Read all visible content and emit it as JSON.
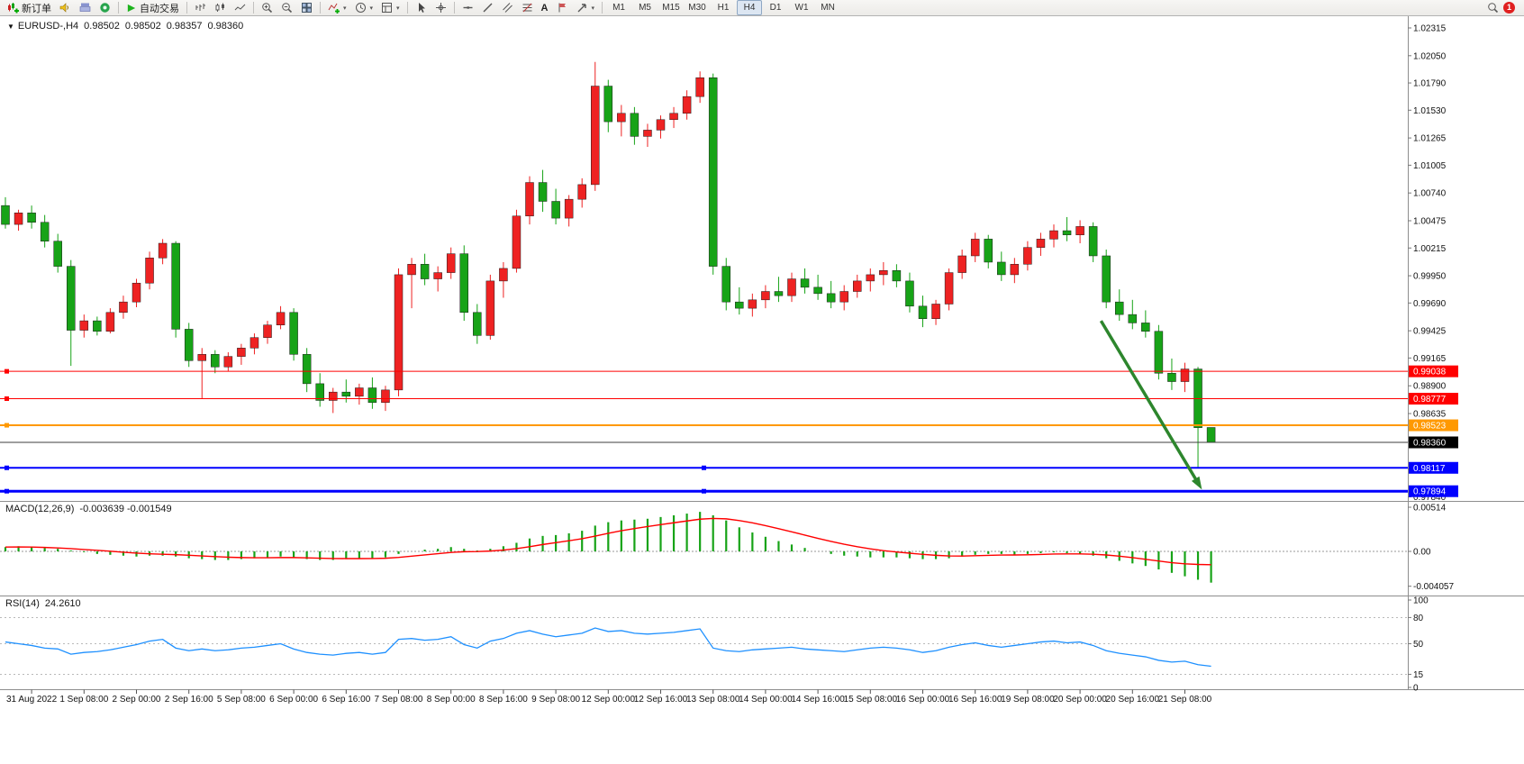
{
  "toolbar": {
    "new_order_label": "新订单",
    "autotrading_label": "自动交易",
    "text_tool_label": "A",
    "timeframes": [
      "M1",
      "M5",
      "M15",
      "M30",
      "H1",
      "H4",
      "D1",
      "W1",
      "MN"
    ],
    "active_timeframe": "H4",
    "notification_count": "1"
  },
  "chart": {
    "header": {
      "collapse_icon": "▼",
      "symbol": "EURUSD-,H4",
      "open": "0.98502",
      "high": "0.98502",
      "low": "0.98357",
      "close": "0.98360"
    },
    "macd_header": {
      "label": "MACD(12,26,9)",
      "values": "-0.003639 -0.001549"
    },
    "rsi_header": {
      "label": "RSI(14)",
      "value": "24.2610"
    }
  },
  "chart_data": {
    "type": "candlestick",
    "symbol": "EURUSD-",
    "timeframe": "H4",
    "ohlc_current": {
      "open": 0.98502,
      "high": 0.98502,
      "low": 0.98357,
      "close": 0.9836
    },
    "price_axis": {
      "top_price": 1.02315,
      "step": 0.00265
    },
    "price_axis_labels": [
      "1.02315",
      "1.02050",
      "1.01790",
      "1.01530",
      "1.01265",
      "1.01005",
      "1.00740",
      "1.00475",
      "1.00215",
      "0.99950",
      "0.99690",
      "0.99425",
      "0.99165",
      "0.98900",
      "0.98635",
      "0.98370",
      "0.98105",
      "0.97840"
    ],
    "candles": [
      [
        1.0062,
        1.007,
        1.004,
        1.0044
      ],
      [
        1.0044,
        1.0058,
        1.0038,
        1.0055
      ],
      [
        1.0055,
        1.0062,
        1.004,
        1.0046
      ],
      [
        1.0046,
        1.0053,
        1.0022,
        1.0028
      ],
      [
        1.0028,
        1.0035,
        0.9998,
        1.0004
      ],
      [
        1.0004,
        1.001,
        0.9909,
        0.9943
      ],
      [
        0.9943,
        0.9958,
        0.9936,
        0.9952
      ],
      [
        0.9952,
        0.9956,
        0.9938,
        0.9942
      ],
      [
        0.9942,
        0.9964,
        0.994,
        0.996
      ],
      [
        0.996,
        0.9976,
        0.9954,
        0.997
      ],
      [
        0.997,
        0.9992,
        0.9965,
        0.9988
      ],
      [
        0.9988,
        1.0018,
        0.9982,
        1.0012
      ],
      [
        1.0012,
        1.003,
        1.0006,
        1.0026
      ],
      [
        1.0026,
        1.0028,
        0.9936,
        0.9944
      ],
      [
        0.9944,
        0.995,
        0.9908,
        0.9914
      ],
      [
        0.9914,
        0.9926,
        0.9878,
        0.992
      ],
      [
        0.992,
        0.9924,
        0.9902,
        0.9908
      ],
      [
        0.9908,
        0.9922,
        0.9904,
        0.9918
      ],
      [
        0.9918,
        0.993,
        0.991,
        0.9926
      ],
      [
        0.9926,
        0.994,
        0.992,
        0.9936
      ],
      [
        0.9936,
        0.9952,
        0.993,
        0.9948
      ],
      [
        0.9948,
        0.9966,
        0.9944,
        0.996
      ],
      [
        0.996,
        0.9964,
        0.9914,
        0.992
      ],
      [
        0.992,
        0.9926,
        0.9884,
        0.9892
      ],
      [
        0.9892,
        0.9902,
        0.987,
        0.9876
      ],
      [
        0.9876,
        0.9888,
        0.9864,
        0.9884
      ],
      [
        0.9884,
        0.9896,
        0.9874,
        0.988
      ],
      [
        0.988,
        0.9892,
        0.9872,
        0.9888
      ],
      [
        0.9888,
        0.9898,
        0.9868,
        0.9874
      ],
      [
        0.9874,
        0.989,
        0.9866,
        0.9886
      ],
      [
        0.9886,
        1.0002,
        0.988,
        0.9996
      ],
      [
        0.9996,
        1.0012,
        0.9964,
        1.0006
      ],
      [
        1.0006,
        1.0016,
        0.9986,
        0.9992
      ],
      [
        0.9992,
        1.0004,
        0.998,
        0.9998
      ],
      [
        0.9998,
        1.0022,
        0.9992,
        1.0016
      ],
      [
        1.0016,
        1.0024,
        0.9952,
        0.996
      ],
      [
        0.996,
        0.9968,
        0.993,
        0.9938
      ],
      [
        0.9938,
        0.9996,
        0.9934,
        0.999
      ],
      [
        0.999,
        1.0008,
        0.9974,
        1.0002
      ],
      [
        1.0002,
        1.0058,
        0.9998,
        1.0052
      ],
      [
        1.0052,
        1.009,
        1.0044,
        1.0084
      ],
      [
        1.0084,
        1.0096,
        1.0056,
        1.0066
      ],
      [
        1.0066,
        1.0078,
        1.0044,
        1.005
      ],
      [
        1.005,
        1.0072,
        1.0042,
        1.0068
      ],
      [
        1.0068,
        1.0088,
        1.006,
        1.0082
      ],
      [
        1.0082,
        1.0199,
        1.0076,
        1.0176
      ],
      [
        1.0176,
        1.0182,
        1.0132,
        1.0142
      ],
      [
        1.0142,
        1.0158,
        1.0128,
        1.015
      ],
      [
        1.015,
        1.0156,
        1.012,
        1.0128
      ],
      [
        1.0128,
        1.014,
        1.0118,
        1.0134
      ],
      [
        1.0134,
        1.0148,
        1.0126,
        1.0144
      ],
      [
        1.0144,
        1.0156,
        1.0136,
        1.015
      ],
      [
        1.015,
        1.0172,
        1.0144,
        1.0166
      ],
      [
        1.0166,
        1.019,
        1.016,
        1.0184
      ],
      [
        1.0184,
        1.0188,
        0.9996,
        1.0004
      ],
      [
        1.0004,
        1.0012,
        0.9962,
        0.997
      ],
      [
        0.997,
        0.9984,
        0.9958,
        0.9964
      ],
      [
        0.9964,
        0.9978,
        0.9956,
        0.9972
      ],
      [
        0.9972,
        0.9986,
        0.9964,
        0.998
      ],
      [
        0.998,
        0.9994,
        0.997,
        0.9976
      ],
      [
        0.9976,
        0.9998,
        0.997,
        0.9992
      ],
      [
        0.9992,
        1.0002,
        0.9978,
        0.9984
      ],
      [
        0.9984,
        0.9996,
        0.9972,
        0.9978
      ],
      [
        0.9978,
        0.999,
        0.9964,
        0.997
      ],
      [
        0.997,
        0.9986,
        0.9962,
        0.998
      ],
      [
        0.998,
        0.9996,
        0.9974,
        0.999
      ],
      [
        0.999,
        1.0002,
        0.998,
        0.9996
      ],
      [
        0.9996,
        1.0008,
        0.9986,
        1.0
      ],
      [
        1.0,
        1.0006,
        0.9984,
        0.999
      ],
      [
        0.999,
        0.9998,
        0.996,
        0.9966
      ],
      [
        0.9966,
        0.9976,
        0.9946,
        0.9954
      ],
      [
        0.9954,
        0.9972,
        0.9948,
        0.9968
      ],
      [
        0.9968,
        1.0002,
        0.9962,
        0.9998
      ],
      [
        0.9998,
        1.002,
        0.9992,
        1.0014
      ],
      [
        1.0014,
        1.0036,
        1.0008,
        1.003
      ],
      [
        1.003,
        1.0034,
        1.0002,
        1.0008
      ],
      [
        1.0008,
        1.0018,
        0.999,
        0.9996
      ],
      [
        0.9996,
        1.0012,
        0.9988,
        1.0006
      ],
      [
        1.0006,
        1.0028,
        1.0,
        1.0022
      ],
      [
        1.0022,
        1.0036,
        1.0014,
        1.003
      ],
      [
        1.003,
        1.0044,
        1.0022,
        1.0038
      ],
      [
        1.0038,
        1.0051,
        1.0028,
        1.0034
      ],
      [
        1.0034,
        1.0048,
        1.0026,
        1.0042
      ],
      [
        1.0042,
        1.0046,
        1.0008,
        1.0014
      ],
      [
        1.0014,
        1.002,
        0.9964,
        0.997
      ],
      [
        0.997,
        0.9982,
        0.9952,
        0.9958
      ],
      [
        0.9958,
        0.9972,
        0.9944,
        0.995
      ],
      [
        0.995,
        0.9962,
        0.9936,
        0.9942
      ],
      [
        0.9942,
        0.9948,
        0.9896,
        0.9902
      ],
      [
        0.9902,
        0.9916,
        0.9886,
        0.9894
      ],
      [
        0.9894,
        0.9912,
        0.9884,
        0.9906
      ],
      [
        0.9906,
        0.9908,
        0.9812,
        0.985
      ],
      [
        0.98502,
        0.98502,
        0.98357,
        0.9836
      ]
    ],
    "levels": [
      {
        "price": 0.99038,
        "label": "0.99038",
        "color": "#ff0000",
        "width": 1,
        "center_handle": false
      },
      {
        "price": 0.98777,
        "label": "0.98777",
        "color": "#ff0000",
        "width": 1,
        "center_handle": false
      },
      {
        "price": 0.98523,
        "label": "0.98523",
        "color": "#ff9900",
        "width": 2,
        "center_handle": false
      },
      {
        "price": 0.98117,
        "label": "0.98117",
        "color": "#0000ff",
        "width": 2,
        "center_handle": true
      },
      {
        "price": 0.97894,
        "label": "0.97894",
        "color": "#0000ff",
        "width": 3,
        "center_handle": true
      }
    ],
    "current_price": {
      "value": 0.9836,
      "label": "0.98360",
      "line_color": "#3c3c3c",
      "tag_bg": "#000000"
    },
    "macd": {
      "label": "MACD(12,26,9)",
      "value_main": -0.003639,
      "value_signal": -0.001549,
      "hist_color": "#17a317",
      "signal_color": "#ff0000",
      "axis_labels": [
        "0.00514",
        "0.00",
        "-0.004057"
      ],
      "axis_values": [
        0.00514,
        0,
        -0.004057
      ],
      "hist": [
        0.0005,
        0.0006,
        0.0005,
        0.0004,
        0.0003,
        0.0001,
        -0.0001,
        -0.0003,
        -0.0004,
        -0.0005,
        -0.0006,
        -0.0005,
        -0.0005,
        -0.0006,
        -0.0008,
        -0.0009,
        -0.001,
        -0.001,
        -0.0009,
        -0.0008,
        -0.0007,
        -0.0006,
        -0.0007,
        -0.0009,
        -0.001,
        -0.001,
        -0.0009,
        -0.0008,
        -0.0008,
        -0.0007,
        -0.0003,
        0.0,
        0.0002,
        0.0003,
        0.0005,
        0.0003,
        0.0001,
        0.0003,
        0.0006,
        0.001,
        0.0015,
        0.0018,
        0.0019,
        0.0021,
        0.0024,
        0.003,
        0.0034,
        0.0036,
        0.0037,
        0.0038,
        0.004,
        0.0042,
        0.0044,
        0.0046,
        0.0042,
        0.0036,
        0.0028,
        0.0022,
        0.0017,
        0.0012,
        0.0008,
        0.0004,
        0.0,
        -0.0003,
        -0.0005,
        -0.0006,
        -0.0007,
        -0.0007,
        -0.0007,
        -0.0008,
        -0.0009,
        -0.0009,
        -0.0008,
        -0.0006,
        -0.0004,
        -0.0003,
        -0.0003,
        -0.0004,
        -0.0003,
        -0.0002,
        -0.0001,
        -0.0002,
        -0.0003,
        -0.0005,
        -0.0008,
        -0.0011,
        -0.0014,
        -0.0017,
        -0.0021,
        -0.0025,
        -0.0029,
        -0.0033,
        -0.003639
      ],
      "signal": [
        0.0005,
        0.00052,
        0.0005,
        0.00046,
        0.0004,
        0.00032,
        0.00022,
        0.00012,
        2e-05,
        -0.0001,
        -0.0002,
        -0.00028,
        -0.00033,
        -0.00038,
        -0.00045,
        -0.00053,
        -0.00061,
        -0.00068,
        -0.00072,
        -0.00074,
        -0.00074,
        -0.00072,
        -0.00072,
        -0.00075,
        -0.00079,
        -0.00083,
        -0.00084,
        -0.00084,
        -0.00083,
        -0.0008,
        -0.0007,
        -0.00056,
        -0.00041,
        -0.00027,
        -0.00012,
        -4e-05,
        -2e-05,
        4e-05,
        0.00015,
        0.00032,
        0.00055,
        0.0008,
        0.00102,
        0.00124,
        0.00147,
        0.00178,
        0.0021,
        0.0024,
        0.00266,
        0.00289,
        0.00311,
        0.00333,
        0.00354,
        0.00375,
        0.00384,
        0.00379,
        0.00359,
        0.00332,
        0.00299,
        0.00264,
        0.00227,
        0.0019,
        0.00152,
        0.00116,
        0.00083,
        0.00054,
        0.00029,
        9e-05,
        -7e-05,
        -0.00021,
        -0.00035,
        -0.00046,
        -0.00053,
        -0.00054,
        -0.00051,
        -0.00047,
        -0.00043,
        -0.00042,
        -0.0004,
        -0.00036,
        -0.00031,
        -0.00029,
        -0.00029,
        -0.00033,
        -0.00042,
        -0.00056,
        -0.00073,
        -0.00092,
        -0.00112,
        -0.00132,
        -0.00145,
        -0.00152,
        -0.001549
      ]
    },
    "rsi": {
      "label": "RSI(14)",
      "value": 24.261,
      "line_color": "#1e90ff",
      "levels": [
        80,
        50,
        15
      ],
      "axis_labels": [
        "100",
        "80",
        "50",
        "15",
        "0"
      ],
      "axis_values": [
        100,
        80,
        50,
        15,
        0
      ],
      "values": [
        52,
        50,
        48,
        45,
        44,
        38,
        40,
        41,
        43,
        46,
        49,
        53,
        55,
        45,
        42,
        44,
        42,
        43,
        45,
        46,
        48,
        50,
        44,
        40,
        38,
        37,
        39,
        40,
        38,
        40,
        55,
        56,
        54,
        55,
        58,
        49,
        45,
        53,
        56,
        62,
        65,
        61,
        58,
        60,
        62,
        68,
        64,
        65,
        62,
        61,
        62,
        63,
        65,
        67,
        45,
        42,
        41,
        43,
        44,
        45,
        46,
        44,
        43,
        42,
        41,
        43,
        45,
        46,
        45,
        43,
        40,
        42,
        46,
        49,
        51,
        48,
        46,
        48,
        50,
        52,
        53,
        51,
        52,
        48,
        42,
        39,
        37,
        35,
        31,
        29,
        30,
        26,
        24.261
      ]
    },
    "time_labels": [
      "31 Aug 2022",
      "1 Sep 08:00",
      "2 Sep 00:00",
      "2 Sep 16:00",
      "5 Sep 08:00",
      "6 Sep 00:00",
      "6 Sep 16:00",
      "7 Sep 08:00",
      "8 Sep 00:00",
      "8 Sep 16:00",
      "9 Sep 08:00",
      "12 Sep 00:00",
      "12 Sep 16:00",
      "13 Sep 08:00",
      "14 Sep 00:00",
      "14 Sep 16:00",
      "15 Sep 08:00",
      "16 Sep 00:00",
      "16 Sep 16:00",
      "19 Sep 08:00",
      "20 Sep 00:00",
      "20 Sep 16:00",
      "21 Sep 08:00"
    ],
    "time_label_start": 2,
    "time_label_step": 4,
    "arrow": {
      "from_bar": 83.6,
      "from_price": 0.9952,
      "to_bar": 91.3,
      "to_price": 0.9791,
      "color": "#2d862d"
    },
    "colors": {
      "up": "#ee2222",
      "down": "#17a317",
      "background": "#ffffff"
    }
  }
}
